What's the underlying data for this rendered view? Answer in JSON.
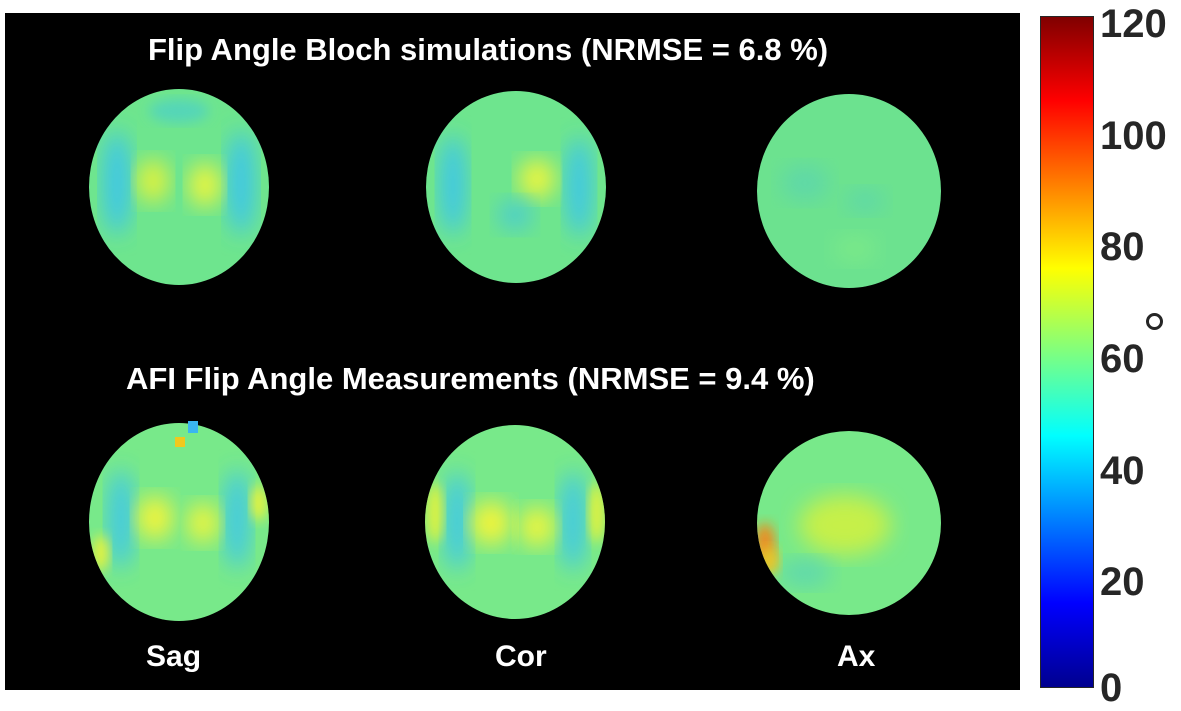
{
  "titles": {
    "top": "Flip Angle Bloch simulations (NRMSE = 6.8 %)",
    "bottom": "AFI Flip Angle Measurements (NRMSE = 9.4 %)"
  },
  "view_labels": {
    "sag": "Sag",
    "cor": "Cor",
    "ax": "Ax"
  },
  "colorbar": {
    "colormap": "jet",
    "range": [
      0,
      120
    ],
    "ticks": [
      "0",
      "20",
      "40",
      "60",
      "80",
      "100",
      "120"
    ],
    "unit_symbol": "degree"
  },
  "colors": {
    "background": "#000000",
    "text": "#ffffff",
    "axis_text": "#262626",
    "map_base": "#6de88e",
    "cool_band": "#3cc6e6",
    "warm_spot": "#ecf53c",
    "hot_artifact": "#f08a1c"
  }
}
